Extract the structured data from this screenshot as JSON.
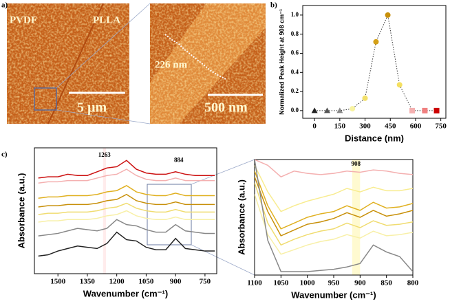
{
  "figure": {
    "panel_labels": [
      "a)",
      "b)",
      "c)"
    ],
    "image_labels": [
      "PVDF",
      "PLLA",
      "5 µm",
      "226 nm",
      "500 nm"
    ]
  },
  "chart_data": [
    {
      "type": "scatter",
      "xlabel": "Distance (nm)",
      "ylabel": "Normalized Peak Height at 908 cm⁻¹",
      "x": [
        0,
        75,
        150,
        225,
        300,
        365,
        435,
        505,
        580,
        655,
        725
      ],
      "values": [
        0,
        0,
        0,
        0.02,
        0.13,
        0.72,
        1.0,
        0.27,
        0,
        0,
        0
      ],
      "colors": [
        "#222222",
        "#555555",
        "#888888",
        "#f8f3a0",
        "#f2e06a",
        "#d4a017",
        "#c8900a",
        "#f5e060",
        "#f4b0b0",
        "#f08080",
        "#cc0000"
      ],
      "markers": [
        "triangle",
        "triangle",
        "triangle",
        "circle",
        "circle",
        "circle",
        "circle",
        "circle",
        "square",
        "square",
        "square"
      ],
      "xlim": [
        -70,
        780
      ],
      "ylim": [
        -0.08,
        1.1
      ],
      "xticks": [
        0,
        150,
        300,
        450,
        600,
        750
      ],
      "yticks": [
        {
          "value": 0,
          "label": "0.0"
        },
        0.2,
        0.4,
        0.6,
        0.8,
        {
          "value": 1,
          "label": "1.0"
        }
      ]
    },
    {
      "type": "line",
      "xlabel": "Wavenumber (cm⁻¹)",
      "ylabel": "Absorbance (a.u.)",
      "x": [
        1600,
        1550,
        1500,
        1450,
        1400,
        1350,
        1300,
        1250,
        1200,
        1150,
        1100,
        1050,
        1000,
        950,
        900,
        850,
        800,
        750,
        700
      ],
      "series": [
        {
          "color": "#cc1111",
          "values": [
            7.6,
            7.7,
            7.7,
            7.9,
            7.8,
            7.8,
            8.1,
            8.4,
            8.5,
            9.0,
            8.3,
            8.0,
            7.9,
            7.9,
            8.1,
            7.9,
            7.8,
            7.8,
            7.8
          ]
        },
        {
          "color": "#f4b0b0",
          "values": [
            7.2,
            7.3,
            7.3,
            7.4,
            7.4,
            7.4,
            7.6,
            7.8,
            7.9,
            8.3,
            7.8,
            7.5,
            7.4,
            7.4,
            7.6,
            7.4,
            7.4,
            7.4,
            7.4
          ]
        },
        {
          "color": "#e0b020",
          "values": [
            6.0,
            6.1,
            6.1,
            6.2,
            6.2,
            6.2,
            6.3,
            6.5,
            6.6,
            7.0,
            6.5,
            6.3,
            6.2,
            6.2,
            6.4,
            6.2,
            6.2,
            6.2,
            6.2
          ]
        },
        {
          "color": "#c8900a",
          "values": [
            5.3,
            5.4,
            5.4,
            5.5,
            5.5,
            5.5,
            5.6,
            5.8,
            5.9,
            6.3,
            5.8,
            5.6,
            5.5,
            5.5,
            5.7,
            5.5,
            5.5,
            5.5,
            5.5
          ]
        },
        {
          "color": "#f0dc70",
          "values": [
            4.7,
            4.8,
            4.8,
            4.9,
            4.9,
            4.9,
            5.0,
            5.2,
            5.3,
            5.6,
            5.2,
            5.0,
            4.9,
            4.9,
            5.1,
            4.9,
            4.9,
            4.9,
            4.9
          ]
        },
        {
          "color": "#f8f0a8",
          "values": [
            4.1,
            4.2,
            4.2,
            4.3,
            4.3,
            4.3,
            4.4,
            4.6,
            4.7,
            5.0,
            4.6,
            4.4,
            4.3,
            4.3,
            4.5,
            4.3,
            4.3,
            4.3,
            4.3
          ]
        },
        {
          "color": "#888888",
          "values": [
            3.0,
            3.1,
            3.2,
            3.4,
            3.6,
            3.5,
            3.4,
            3.6,
            4.3,
            3.9,
            3.8,
            3.5,
            3.3,
            3.3,
            3.9,
            3.4,
            3.3,
            3.2,
            3.2
          ]
        },
        {
          "color": "#222222",
          "values": [
            1.4,
            1.5,
            1.8,
            2.0,
            2.2,
            2.1,
            2.0,
            2.4,
            3.3,
            2.7,
            2.6,
            2.1,
            1.9,
            1.9,
            2.8,
            2.0,
            1.9,
            1.8,
            1.8
          ]
        }
      ],
      "annotations": [
        {
          "text": "1263",
          "x": 1263,
          "y": 9.4
        },
        {
          "text": "884",
          "x": 884,
          "y": 9.0
        }
      ],
      "xlim": [
        1620,
        690
      ],
      "ylim": [
        0,
        10
      ],
      "xticks": [
        1500,
        1350,
        1200,
        1050,
        900,
        750
      ]
    },
    {
      "type": "line",
      "xlabel": "Wavenumber (cm⁻¹)",
      "ylabel": "Absorbance (a.u.)",
      "x": [
        1100,
        1075,
        1050,
        1025,
        1000,
        975,
        950,
        925,
        900,
        875,
        850,
        825,
        800
      ],
      "series": [
        {
          "color": "#f4b0b0",
          "values": [
            10,
            9.5,
            8.5,
            9.0,
            8.8,
            8.7,
            8.8,
            9.0,
            8.9,
            9.1,
            9.0,
            8.8,
            8.7
          ]
        },
        {
          "color": "#f8ec90",
          "values": [
            9.5,
            7.2,
            5.5,
            6.0,
            6.4,
            6.7,
            7.0,
            7.5,
            7.2,
            7.6,
            7.3,
            7.3,
            7.5
          ]
        },
        {
          "color": "#e0b020",
          "values": [
            9,
            6,
            4,
            4.5,
            5.0,
            5.3,
            5.5,
            6.0,
            5.6,
            6.3,
            5.8,
            5.9,
            6.2
          ]
        },
        {
          "color": "#c8900a",
          "values": [
            8.5,
            5.5,
            3.4,
            3.9,
            4.4,
            4.6,
            4.9,
            5.4,
            5.0,
            5.6,
            5.1,
            5.3,
            5.6
          ]
        },
        {
          "color": "#f0dc70",
          "values": [
            8.0,
            4.5,
            2.6,
            3.1,
            3.5,
            3.8,
            4.0,
            4.5,
            4.1,
            4.7,
            4.3,
            4.4,
            4.6
          ]
        },
        {
          "color": "#f8f0a8",
          "values": [
            7.0,
            3.5,
            1.8,
            2.2,
            2.6,
            2.9,
            3.1,
            3.5,
            3.2,
            3.8,
            3.4,
            3.5,
            3.7
          ]
        },
        {
          "color": "#888888",
          "values": [
            10,
            3,
            0.3,
            0.3,
            0.3,
            0.4,
            0.5,
            0.7,
            1.0,
            2.6,
            2.0,
            1.6,
            0.3
          ]
        }
      ],
      "annotations": [
        {
          "text": "908",
          "x": 908,
          "y": 9.6
        }
      ],
      "xlim": [
        1100,
        800
      ],
      "ylim": [
        0,
        10
      ],
      "xticks": [
        1100,
        1050,
        1000,
        950,
        900,
        850,
        800
      ]
    }
  ]
}
